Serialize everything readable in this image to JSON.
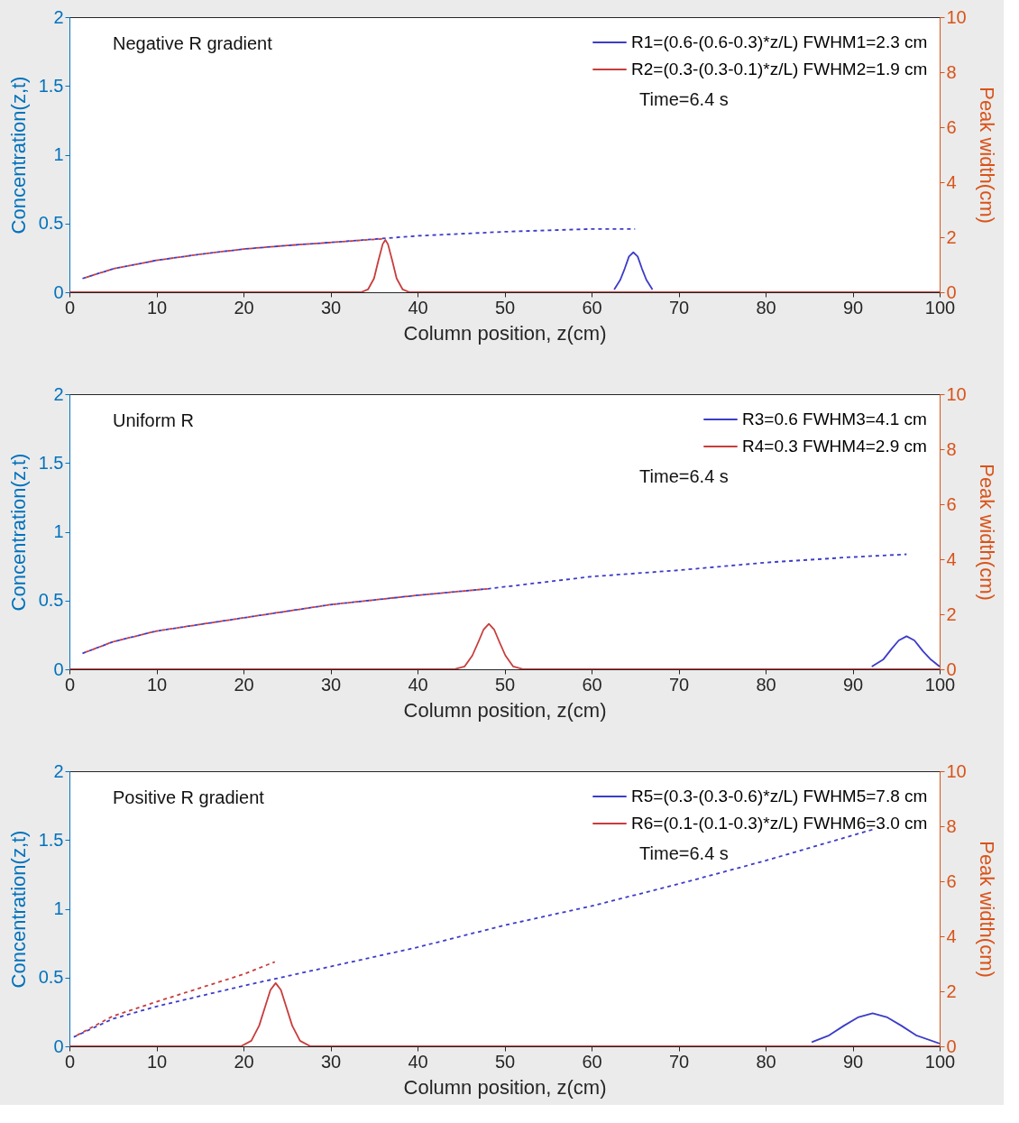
{
  "chart_data": [
    {
      "type": "line",
      "xlabel": "Column position, z(cm)",
      "ylabel": "Concentration(z,t)",
      "y2label": "Peak width(cm)",
      "annotations": [
        "Negative R gradient",
        "Time=6.4 s"
      ],
      "legend": "top right",
      "xlim": [
        0,
        100
      ],
      "xticks": [
        0,
        10,
        20,
        30,
        40,
        50,
        60,
        70,
        80,
        90,
        100
      ],
      "ylim": [
        0,
        2
      ],
      "yticks": [
        0,
        0.5,
        1,
        1.5,
        2
      ],
      "y2lim": [
        0,
        10
      ],
      "y2ticks": [
        0,
        2,
        4,
        6,
        8,
        10
      ],
      "series": [
        {
          "name": "R1=(0.6-(0.6-0.3)*z/L)  FWHM1=2.3 cm",
          "color": "#3c3cc8",
          "x": [
            62.6,
            63.3,
            63.8,
            64.3,
            64.8,
            65.3,
            65.8,
            66.3,
            67.0
          ],
          "values": [
            0.02,
            0.09,
            0.17,
            0.26,
            0.29,
            0.26,
            0.17,
            0.09,
            0.02
          ]
        },
        {
          "name": "R2=(0.3-(0.3-0.1)*z/L)  FWHM2=1.9 cm",
          "color": "#c83c3c",
          "x": [
            0,
            33.5,
            34.3,
            35.0,
            35.5,
            36.0,
            36.3,
            36.6,
            37.1,
            37.6,
            38.3,
            39.1,
            100
          ],
          "values": [
            0,
            0,
            0.02,
            0.1,
            0.23,
            0.35,
            0.38,
            0.35,
            0.23,
            0.1,
            0.02,
            0,
            0
          ]
        },
        {
          "color": "#3c3cc8",
          "axis": "y2",
          "line_style": "dashed",
          "x": [
            1.5,
            5,
            10,
            15,
            20,
            25,
            30,
            40,
            50,
            60,
            65
          ],
          "values": [
            0.5,
            0.85,
            1.16,
            1.38,
            1.57,
            1.7,
            1.81,
            2.05,
            2.2,
            2.3,
            2.3
          ]
        },
        {
          "color": "#c83c3c",
          "axis": "y2",
          "line_style": "dashed",
          "x": [
            1.5,
            5,
            10,
            15,
            20,
            25,
            30,
            36.3
          ],
          "values": [
            0.5,
            0.85,
            1.16,
            1.38,
            1.57,
            1.7,
            1.81,
            1.95
          ]
        }
      ]
    },
    {
      "type": "line",
      "xlabel": "Column position, z(cm)",
      "ylabel": "Concentration(z,t)",
      "y2label": "Peak width(cm)",
      "annotations": [
        "Uniform R",
        "Time=6.4 s"
      ],
      "legend": "top right",
      "xlim": [
        0,
        100
      ],
      "xticks": [
        0,
        10,
        20,
        30,
        40,
        50,
        60,
        70,
        80,
        90,
        100
      ],
      "ylim": [
        0,
        2
      ],
      "yticks": [
        0,
        0.5,
        1,
        1.5,
        2
      ],
      "y2lim": [
        0,
        10
      ],
      "y2ticks": [
        0,
        2,
        4,
        6,
        8,
        10
      ],
      "series": [
        {
          "name": "R3=0.6  FWHM3=4.1 cm",
          "color": "#3c3cc8",
          "x": [
            92.2,
            93.5,
            94.5,
            95.3,
            96.2,
            97.1,
            98.1,
            99.0,
            100
          ],
          "values": [
            0.02,
            0.07,
            0.15,
            0.21,
            0.24,
            0.21,
            0.13,
            0.07,
            0.02
          ]
        },
        {
          "name": "R4=0.3  FWHM4=2.9 cm",
          "color": "#c83c3c",
          "x": [
            0,
            44.2,
            45.4,
            46.3,
            47.0,
            47.6,
            48.2,
            48.8,
            49.4,
            50.1,
            51.0,
            52.2,
            100
          ],
          "values": [
            0,
            0,
            0.02,
            0.1,
            0.2,
            0.29,
            0.33,
            0.29,
            0.2,
            0.1,
            0.02,
            0,
            0
          ]
        },
        {
          "color": "#3c3cc8",
          "axis": "y2",
          "line_style": "dashed",
          "x": [
            1.5,
            5,
            10,
            20,
            30,
            40,
            48.2,
            60,
            70,
            80,
            90,
            96.2
          ],
          "values": [
            0.58,
            1.0,
            1.39,
            1.87,
            2.35,
            2.69,
            2.93,
            3.37,
            3.6,
            3.88,
            4.08,
            4.18
          ]
        },
        {
          "color": "#c83c3c",
          "axis": "y2",
          "line_style": "dashed",
          "x": [
            1.5,
            5,
            10,
            20,
            30,
            40,
            48.2
          ],
          "values": [
            0.58,
            1.0,
            1.39,
            1.87,
            2.35,
            2.69,
            2.93
          ]
        }
      ]
    },
    {
      "type": "line",
      "xlabel": "Column position, z(cm)",
      "ylabel": "Concentration(z,t)",
      "y2label": "Peak width(cm)",
      "annotations": [
        "Positive R gradient",
        "Time=6.4 s"
      ],
      "legend": "top right",
      "xlim": [
        0,
        100
      ],
      "xticks": [
        0,
        10,
        20,
        30,
        40,
        50,
        60,
        70,
        80,
        90,
        100
      ],
      "ylim": [
        0,
        2
      ],
      "yticks": [
        0,
        0.5,
        1,
        1.5,
        2
      ],
      "y2lim": [
        0,
        10
      ],
      "y2ticks": [
        0,
        2,
        4,
        6,
        8,
        10
      ],
      "series": [
        {
          "name": "R5=(0.3-(0.3-0.6)*z/L)  FWHM5=7.8 cm",
          "color": "#3c3cc8",
          "x": [
            85.3,
            87.3,
            89.0,
            90.6,
            92.3,
            94.0,
            95.6,
            97.3,
            100
          ],
          "values": [
            0.03,
            0.08,
            0.15,
            0.21,
            0.24,
            0.21,
            0.15,
            0.08,
            0.02
          ]
        },
        {
          "name": "R6=(0.1-(0.1-0.3)*z/L)  FWHM6=3.0 cm",
          "color": "#c83c3c",
          "x": [
            0,
            19.7,
            20.9,
            21.8,
            22.5,
            23.1,
            23.7,
            24.3,
            24.9,
            25.6,
            26.5,
            27.7,
            100
          ],
          "values": [
            0,
            0,
            0.04,
            0.15,
            0.29,
            0.41,
            0.46,
            0.41,
            0.29,
            0.15,
            0.04,
            0,
            0
          ]
        },
        {
          "color": "#3c3cc8",
          "axis": "y2",
          "line_style": "dashed",
          "x": [
            0.5,
            5,
            10,
            20,
            30,
            40,
            50,
            60,
            70,
            80,
            92.3
          ],
          "values": [
            0.34,
            1.0,
            1.45,
            2.2,
            2.9,
            3.6,
            4.4,
            5.1,
            5.9,
            6.75,
            7.88
          ]
        },
        {
          "color": "#c83c3c",
          "axis": "y2",
          "line_style": "dashed",
          "x": [
            0.5,
            5,
            10,
            15,
            20,
            23.6
          ],
          "values": [
            0.34,
            1.1,
            1.62,
            2.12,
            2.62,
            3.07
          ]
        }
      ]
    }
  ]
}
